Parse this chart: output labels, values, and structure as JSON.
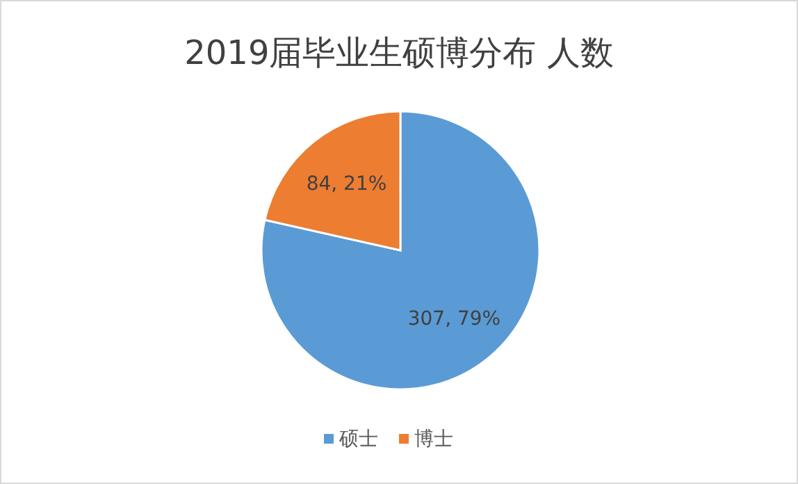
{
  "chart_data": {
    "type": "pie",
    "title": "2019届毕业生硕博分布 人数",
    "categories": [
      "硕士",
      "博士"
    ],
    "values": [
      307,
      84
    ],
    "colors": [
      "#5b9bd5",
      "#ed7d31"
    ],
    "value_labels": [
      "307, 79%",
      "84, 21%"
    ],
    "legend": "bottom"
  }
}
